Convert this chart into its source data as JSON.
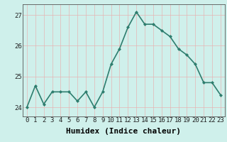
{
  "x": [
    0,
    1,
    2,
    3,
    4,
    5,
    6,
    7,
    8,
    9,
    10,
    11,
    12,
    13,
    14,
    15,
    16,
    17,
    18,
    19,
    20,
    21,
    22,
    23
  ],
  "y": [
    24.0,
    24.7,
    24.1,
    24.5,
    24.5,
    24.5,
    24.2,
    24.5,
    24.0,
    24.5,
    25.4,
    25.9,
    26.6,
    27.1,
    26.7,
    26.7,
    26.5,
    26.3,
    25.9,
    25.7,
    25.4,
    24.8,
    24.8,
    24.4
  ],
  "line_color": "#2e7d6e",
  "marker": "D",
  "marker_size": 2,
  "bg_color": "#cff0eb",
  "grid_color": "#e8b0b0",
  "title": "",
  "xlabel": "Humidex (Indice chaleur)",
  "ylabel": "",
  "xlim": [
    -0.5,
    23.5
  ],
  "ylim": [
    23.7,
    27.35
  ],
  "yticks": [
    24,
    25,
    26,
    27
  ],
  "xtick_labels": [
    "0",
    "1",
    "2",
    "3",
    "4",
    "5",
    "6",
    "7",
    "8",
    "9",
    "10",
    "11",
    "12",
    "13",
    "14",
    "15",
    "16",
    "17",
    "18",
    "19",
    "20",
    "21",
    "22",
    "23"
  ],
  "tick_fontsize": 6.5,
  "xlabel_fontsize": 8,
  "linewidth": 1.2
}
